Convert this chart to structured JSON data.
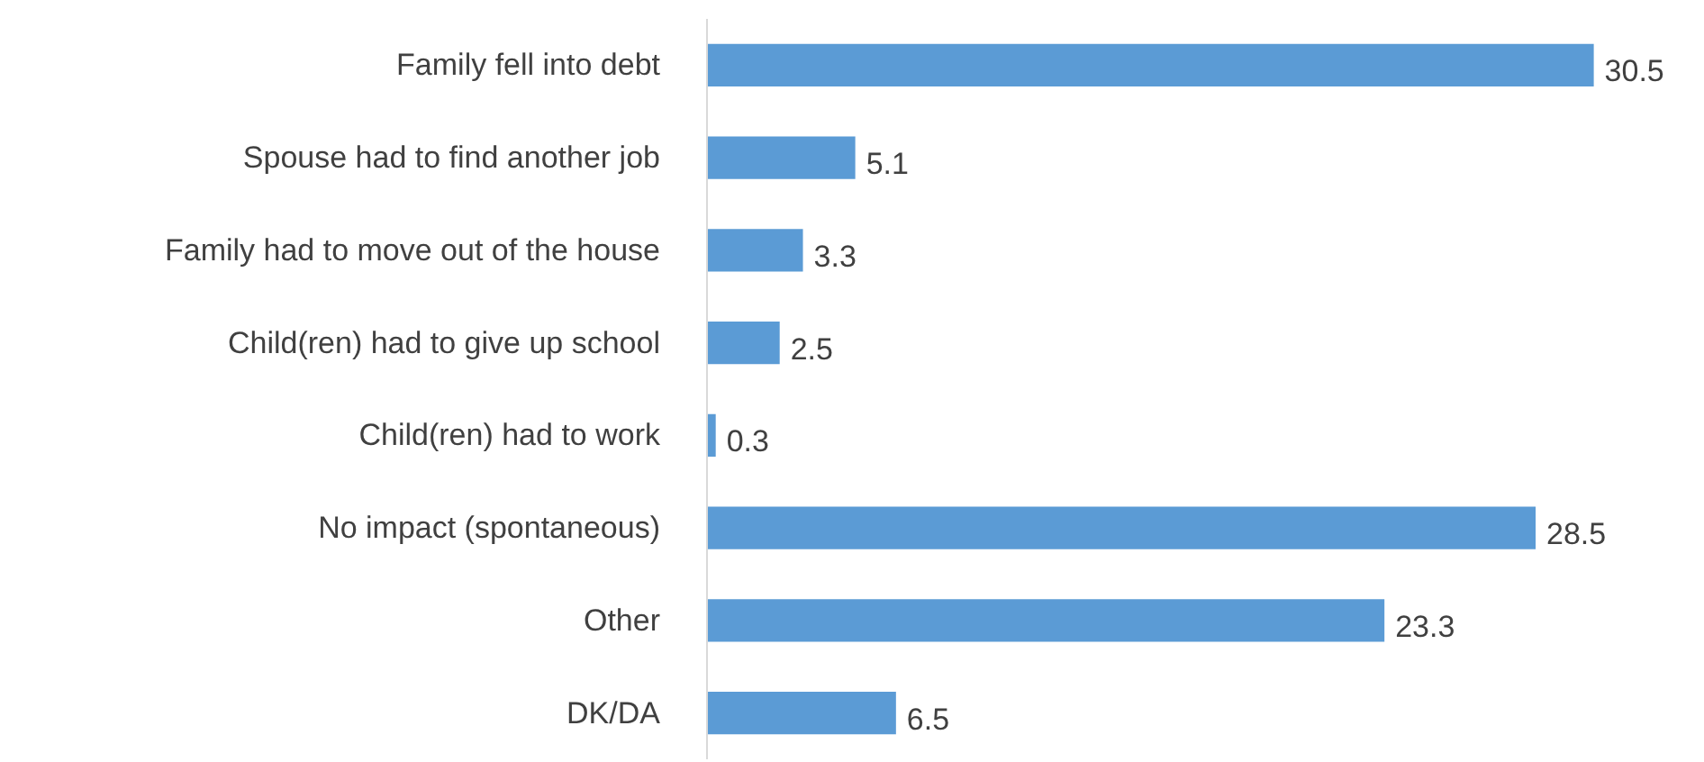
{
  "chart_data": {
    "type": "bar",
    "orientation": "horizontal",
    "categories": [
      "Family fell into debt",
      "Spouse had to find another job",
      "Family had to move out of the house",
      "Child(ren) had to give up school",
      "Child(ren) had to work",
      "No impact (spontaneous)",
      "Other",
      "DK/DA"
    ],
    "values": [
      30.5,
      5.1,
      3.3,
      2.5,
      0.3,
      28.5,
      23.3,
      6.5
    ],
    "color": "#5b9bd5",
    "data_labels": true
  }
}
